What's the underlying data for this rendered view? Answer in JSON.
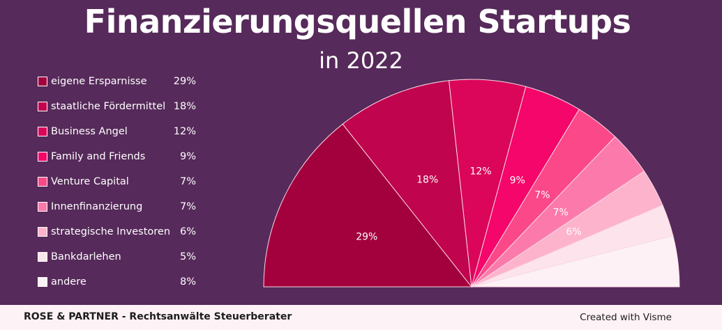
{
  "header": {
    "title": "Finanzierungsquellen Startups",
    "subtitle": "in 2022"
  },
  "chart_data": {
    "type": "pie",
    "layout": "semicircle",
    "title": "Finanzierungsquellen Startups",
    "subtitle": "in 2022",
    "legend_position": "left",
    "series": [
      {
        "label": "eigene Ersparnisse",
        "value": 29,
        "display": "29%",
        "color": "#a3003e",
        "label_shown": true
      },
      {
        "label": "staatliche Fördermittel",
        "value": 18,
        "display": "18%",
        "color": "#c0044e",
        "label_shown": true
      },
      {
        "label": "Business Angel",
        "value": 12,
        "display": "12%",
        "color": "#db0659",
        "label_shown": true
      },
      {
        "label": "Family and Friends",
        "value": 9,
        "display": "9%",
        "color": "#f4066a",
        "label_shown": true
      },
      {
        "label": "Venture Capital",
        "value": 7,
        "display": "7%",
        "color": "#fa4889",
        "label_shown": true
      },
      {
        "label": "Innenfinanzierung",
        "value": 7,
        "display": "7%",
        "color": "#fb7aab",
        "label_shown": true
      },
      {
        "label": "strategische Investoren",
        "value": 6,
        "display": "6%",
        "color": "#fdb3cc",
        "label_shown": true
      },
      {
        "label": "Bankdarlehen",
        "value": 5,
        "display": "5%",
        "color": "#fde4ec",
        "label_shown": false
      },
      {
        "label": "andere",
        "value": 8,
        "display": "8%",
        "color": "#fdf1f5",
        "label_shown": false
      }
    ]
  },
  "footer": {
    "left": "ROSE & PARTNER - Rechtsanwälte Steuerberater",
    "right": "Created with Visme"
  }
}
